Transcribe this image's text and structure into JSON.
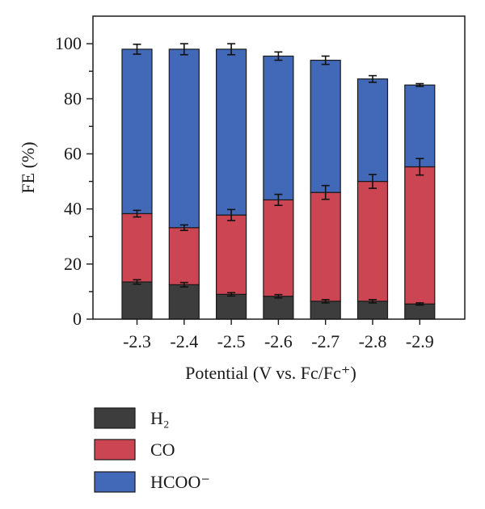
{
  "chart_data": {
    "type": "bar",
    "stacked": true,
    "categories": [
      "-2.3",
      "-2.4",
      "-2.5",
      "-2.6",
      "-2.7",
      "-2.8",
      "-2.9"
    ],
    "series": [
      {
        "name": "H₂",
        "color": "#3d3d3d",
        "values": [
          13.5,
          12.5,
          9.0,
          8.3,
          6.5,
          6.5,
          5.5
        ],
        "errors": [
          0.8,
          0.8,
          0.6,
          0.6,
          0.6,
          0.6,
          0.4
        ]
      },
      {
        "name": "CO",
        "color": "#cc4552",
        "values": [
          24.8,
          20.7,
          28.8,
          35.0,
          39.5,
          43.5,
          49.8
        ],
        "errors": [
          1.2,
          1.0,
          2.0,
          2.0,
          2.5,
          2.5,
          3.0
        ]
      },
      {
        "name": "HCOO⁻",
        "color": "#4268b8",
        "values": [
          59.7,
          64.8,
          60.2,
          52.2,
          48.0,
          37.2,
          29.7
        ],
        "errors": [
          1.8,
          2.0,
          2.0,
          1.5,
          1.5,
          1.2,
          0.5
        ]
      }
    ],
    "xlabel": "Potential (V vs. Fc/Fc⁺)",
    "ylabel": "FE (%)",
    "ylim": [
      0,
      110
    ],
    "yticks": [
      "0",
      "20",
      "40",
      "60",
      "80",
      "100"
    ],
    "ytick_values": [
      0,
      20,
      40,
      60,
      80,
      100
    ],
    "grid": false,
    "legend_position": "bottom-left"
  }
}
